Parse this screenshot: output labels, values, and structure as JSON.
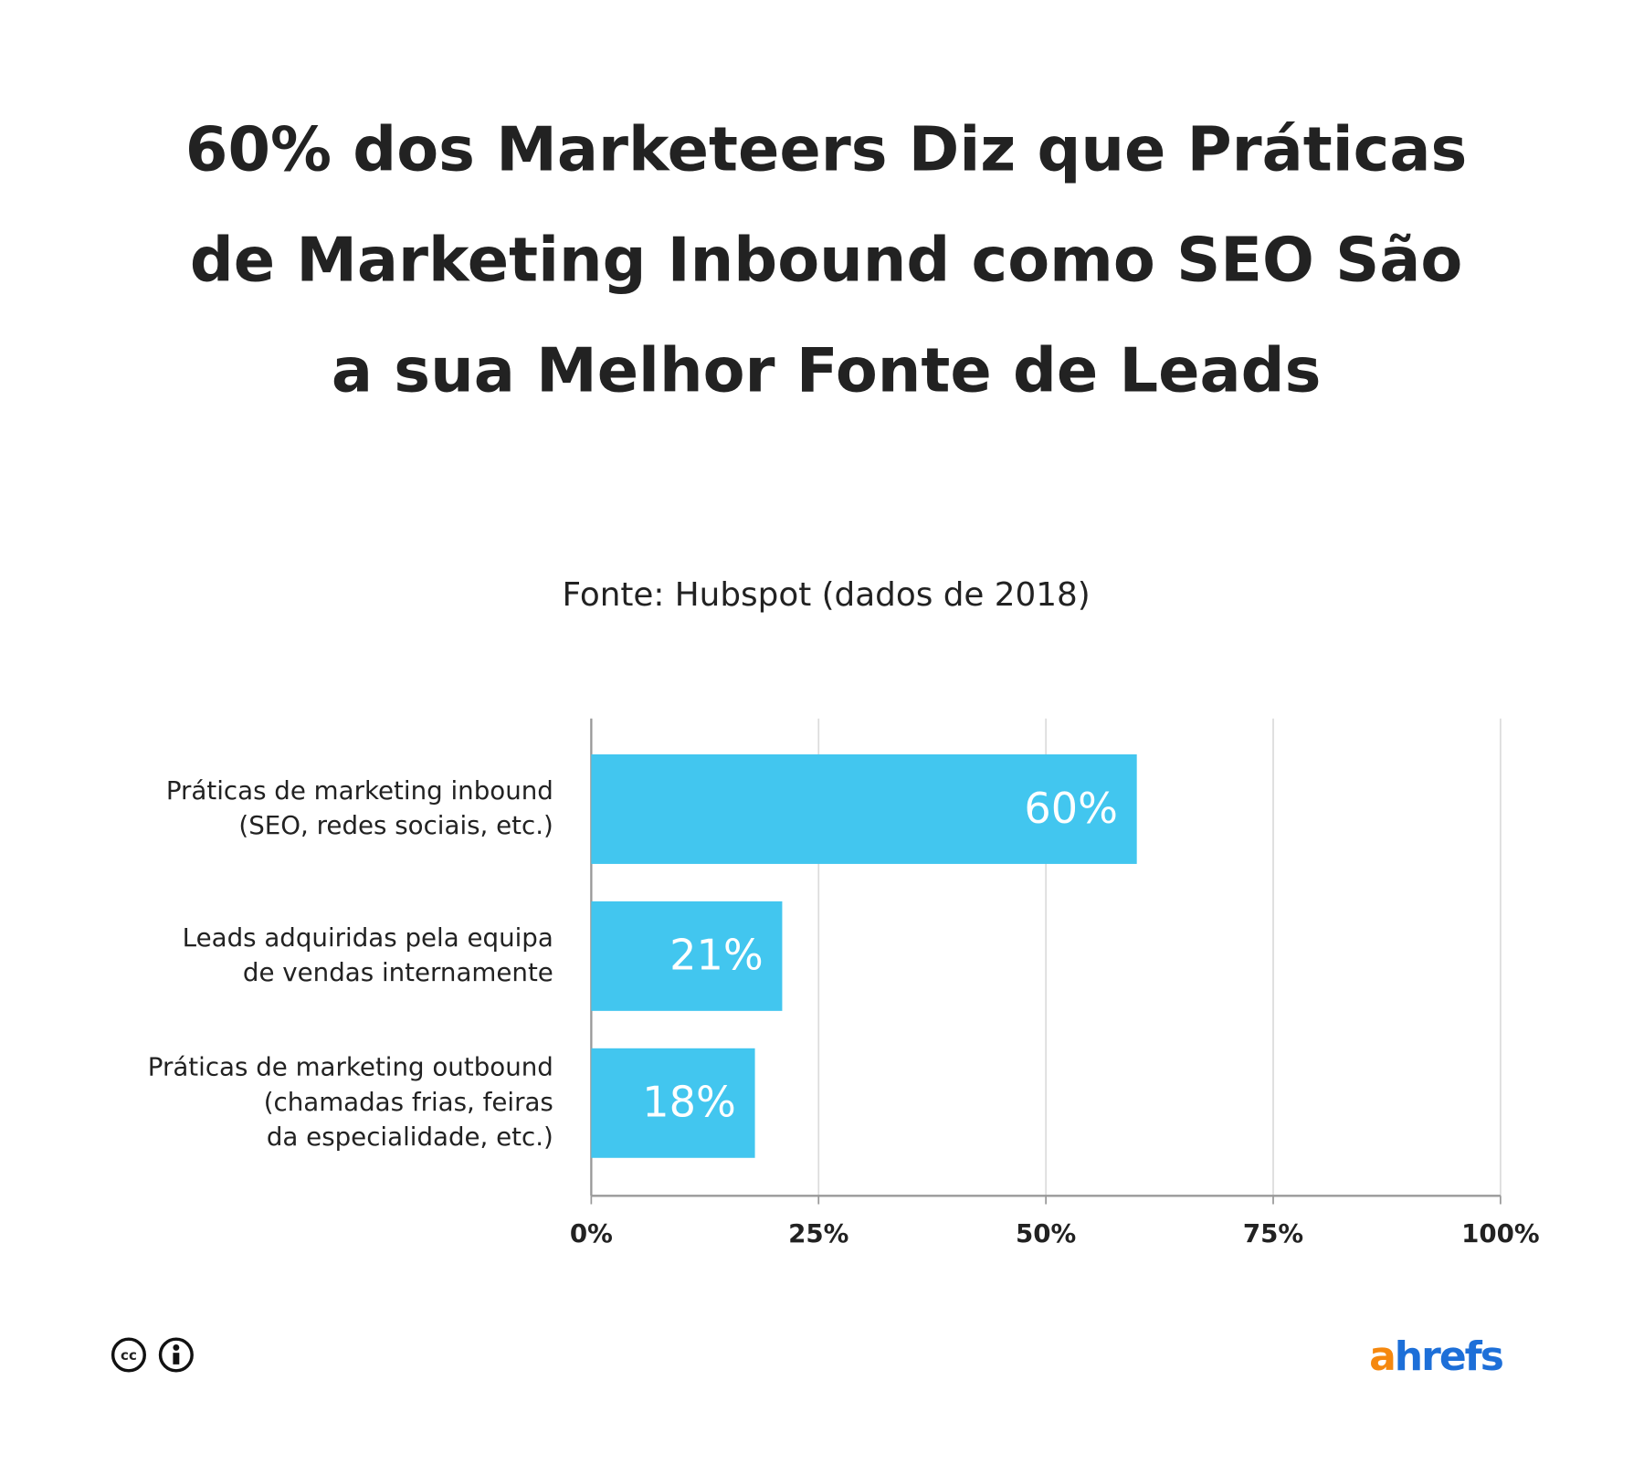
{
  "chart_data": {
    "type": "bar",
    "orientation": "horizontal",
    "title": "60% dos Marketeers Diz que Práticas\nde Marketing Inbound como SEO São\na sua Melhor Fonte de Leads",
    "subtitle": "Fonte: Hubspot (dados de 2018)",
    "categories": [
      "Práticas de marketing inbound\n(SEO, redes sociais, etc.)",
      "Leads adquiridas pela equipa\nde vendas internamente",
      "Práticas de marketing outbound\n(chamadas frias, feiras\nda especialidade, etc.)"
    ],
    "values": [
      60,
      21,
      18
    ],
    "value_labels": [
      "60%",
      "21%",
      "18%"
    ],
    "color": "#42c6ef",
    "xlim": [
      0,
      100
    ],
    "xticks": [
      {
        "value": 0,
        "label": "0%"
      },
      {
        "value": 25,
        "label": "25%"
      },
      {
        "value": 50,
        "label": "50%"
      },
      {
        "value": 75,
        "label": "75%"
      },
      {
        "value": 100,
        "label": "100%"
      }
    ],
    "grid": true,
    "logo": "ahrefs"
  }
}
